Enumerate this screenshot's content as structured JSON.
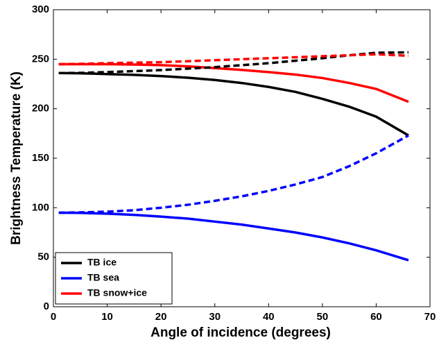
{
  "chart_data": {
    "type": "line",
    "xlabel": "Angle of incidence (degrees)",
    "ylabel": "Brightness Temperature (K)",
    "x": [
      1,
      5,
      10,
      15,
      20,
      25,
      30,
      35,
      40,
      45,
      50,
      55,
      60,
      66
    ],
    "series": [
      {
        "name": "TB ice",
        "color": "#000000",
        "dashed": false,
        "values": [
          236,
          235.8,
          235,
          234.2,
          233,
          231.3,
          229,
          226,
          222,
          217,
          210,
          202,
          192,
          173
        ]
      },
      {
        "name": "TB sea",
        "color": "#0000ff",
        "dashed": false,
        "values": [
          95,
          94.8,
          94,
          92.8,
          91,
          89,
          86,
          83,
          79,
          75,
          70,
          64,
          57,
          47
        ]
      },
      {
        "name": "TB snow+ice",
        "color": "#ff0000",
        "dashed": false,
        "values": [
          245,
          245,
          245,
          244.6,
          244,
          242.8,
          241,
          239.2,
          237,
          234.5,
          231,
          226,
          220,
          207
        ]
      },
      {
        "color": "#000000",
        "dashed": true,
        "values": [
          236,
          236.2,
          237,
          238,
          239,
          240.5,
          242,
          244,
          246,
          248.5,
          251,
          254,
          256.5,
          257
        ]
      },
      {
        "color": "#0000ff",
        "dashed": true,
        "values": [
          95,
          95.3,
          96,
          97.5,
          100,
          103,
          107,
          111.5,
          117,
          123.5,
          131,
          142,
          155,
          173
        ]
      },
      {
        "color": "#ff0000",
        "dashed": true,
        "values": [
          245,
          245.3,
          246,
          246.5,
          247,
          248,
          249,
          250,
          251,
          252,
          253,
          254,
          255,
          253.5
        ]
      }
    ],
    "xlim": [
      0,
      70
    ],
    "xticks": [
      0,
      10,
      20,
      30,
      40,
      50,
      60,
      70
    ],
    "ylim": [
      0,
      300
    ],
    "yticks": [
      0,
      50,
      100,
      150,
      200,
      250,
      300
    ],
    "grid": false,
    "legend": "lower left"
  }
}
